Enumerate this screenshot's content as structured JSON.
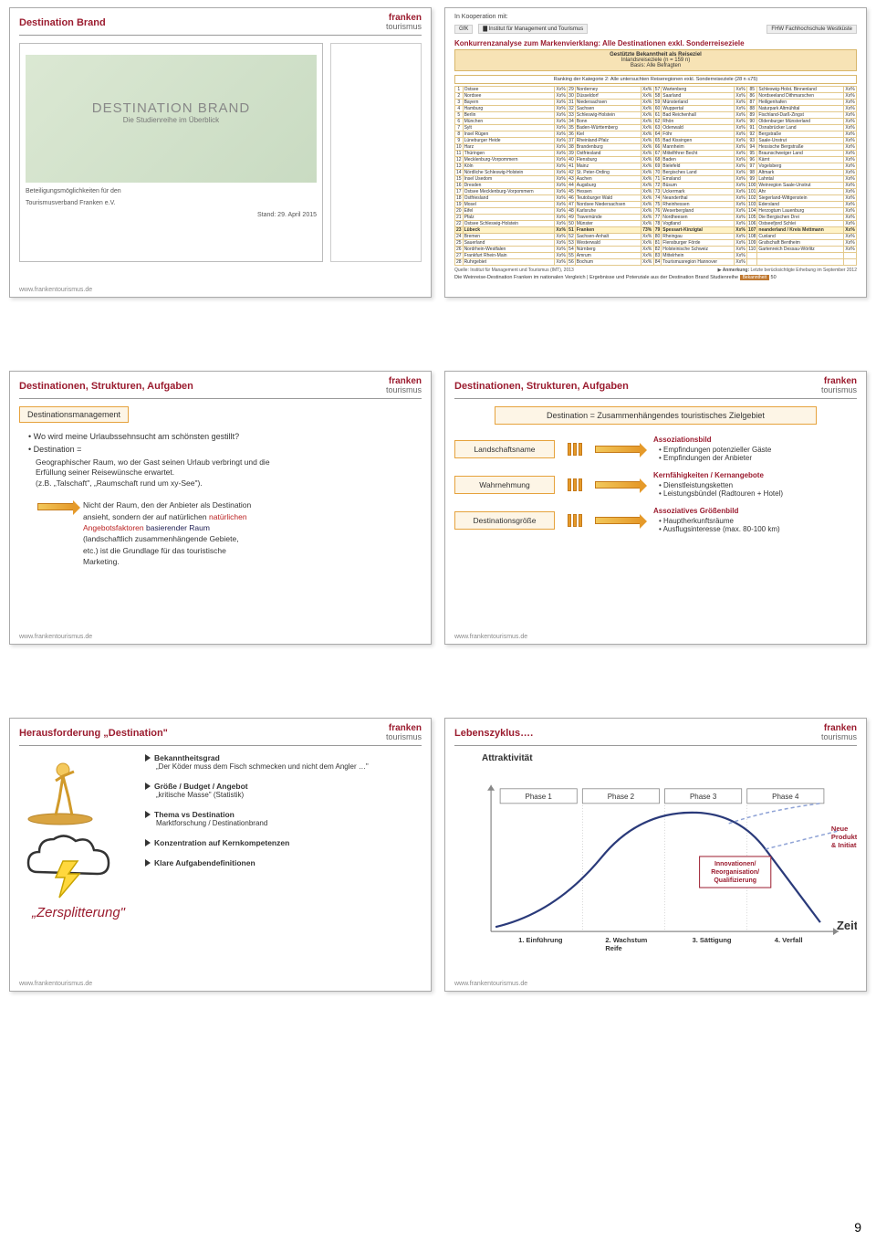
{
  "footer_url": "www.frankentourismus.de",
  "page_number": "9",
  "brand": {
    "line1": "franken",
    "line2": "tourismus"
  },
  "slide1": {
    "title": "Destination Brand",
    "db_title": "DESTINATION BRAND",
    "db_subtitle": "Die Studienreihe im Überblick",
    "caption1": "Beteiligungsmöglichkeiten für den",
    "caption2": "Tourismusverband Franken e.V.",
    "date": "Stand: 29. April 2015"
  },
  "slide2": {
    "coop": "In Kooperation mit:",
    "partners": [
      "GfK",
      "▇ Institut für Management und Tourismus",
      "FHW Fachhochschule Westküste"
    ],
    "konk_title": "Konkurrenzanalyse zum Markenvierklang: Alle Destinationen exkl. Sonderreiseziele",
    "yellow_title": "Gestützte Bekanntheit als Reiseziel",
    "yellow_sub1": "Inlandsreiseziele (n = 159 n)",
    "yellow_sub2": "Basis: Alle Befragten",
    "rank_title": "Ranking der Kategorie 2: Alle untersuchten Reiseregionen exkl. Sonderreiseziele (28 n ≤75)",
    "source": "Quelle: Institut für Management und Tourismus (IMT), 2013",
    "anm_label": "▶ Anmerkung:",
    "anm": "Letzte berücksichtigte Erhebung im September 2012",
    "bottom": "Die Weinreise-Destination Franken im nationalen Vergleich | Ergebnisse und Potenziale aus der Destination Brand Studienreihe",
    "bek_tag": "Bekanntheit",
    "bek_num": "50",
    "cols": [
      [
        "1",
        "Ostsee",
        "Xx%",
        "29",
        "Norderney",
        "Xx%",
        "57",
        "Wartenberg",
        "Xx%",
        "85",
        "Schleswig-Holst. Binnenland",
        "Xx%"
      ],
      [
        "2",
        "Nordsee",
        "Xx%",
        "30",
        "Düsseldorf",
        "Xx%",
        "58",
        "Saarland",
        "Xx%",
        "86",
        "Nordseeland Dithmarschen",
        "Xx%"
      ],
      [
        "3",
        "Bayern",
        "Xx%",
        "31",
        "Niedersachsen",
        "Xx%",
        "59",
        "Münsterland",
        "Xx%",
        "87",
        "Heiligenhafen",
        "Xx%"
      ],
      [
        "4",
        "Hamburg",
        "Xx%",
        "32",
        "Sachsen",
        "Xx%",
        "60",
        "Wuppertal",
        "Xx%",
        "88",
        "Naturpark Altmühltal",
        "Xx%"
      ],
      [
        "5",
        "Berlin",
        "Xx%",
        "33",
        "Schleswig-Holstein",
        "Xx%",
        "61",
        "Bad Reichenhall",
        "Xx%",
        "89",
        "Fischland-Darß-Zingst",
        "Xx%"
      ],
      [
        "6",
        "München",
        "Xx%",
        "34",
        "Bonn",
        "Xx%",
        "62",
        "Rhön",
        "Xx%",
        "90",
        "Oldenburger Münsterland",
        "Xx%"
      ],
      [
        "7",
        "Sylt",
        "Xx%",
        "35",
        "Baden-Württemberg",
        "Xx%",
        "63",
        "Odenwald",
        "Xx%",
        "91",
        "Osnabrücker Land",
        "Xx%"
      ],
      [
        "8",
        "Insel Rügen",
        "Xx%",
        "36",
        "Kiel",
        "Xx%",
        "64",
        "Föhr",
        "Xx%",
        "92",
        "Bergstraße",
        "Xx%"
      ],
      [
        "9",
        "Lüneburger Heide",
        "Xx%",
        "37",
        "Rheinland-Pfalz",
        "Xx%",
        "65",
        "Bad Kissingen",
        "Xx%",
        "93",
        "Saale-Unstrut",
        "Xx%"
      ],
      [
        "10",
        "Harz",
        "Xx%",
        "38",
        "Brandenburg",
        "Xx%",
        "66",
        "Mannheim",
        "Xx%",
        "94",
        "Hessische Bergstraße",
        "Xx%"
      ],
      [
        "11",
        "Thüringen",
        "Xx%",
        "39",
        "Ostfriesland",
        "Xx%",
        "67",
        "Mittelfrhrer Becht",
        "Xx%",
        "95",
        "Braunschweiger Land",
        "Xx%"
      ],
      [
        "12",
        "Mecklenburg-Vorpommern",
        "Xx%",
        "40",
        "Flensburg",
        "Xx%",
        "68",
        "Baden",
        "Xx%",
        "96",
        "Kärnt",
        "Xx%"
      ],
      [
        "13",
        "Köln",
        "Xx%",
        "41",
        "Mainz",
        "Xx%",
        "69",
        "Bielefeld",
        "Xx%",
        "97",
        "Vogelsberg",
        "Xx%"
      ],
      [
        "14",
        "Nördliche Schleswig-Holstein",
        "Xx%",
        "42",
        "St. Peter-Ording",
        "Xx%",
        "70",
        "Bergisches Land",
        "Xx%",
        "98",
        "Altmark",
        "Xx%"
      ],
      [
        "15",
        "Insel Usedom",
        "Xx%",
        "43",
        "Aachen",
        "Xx%",
        "71",
        "Emsland",
        "Xx%",
        "99",
        "Lahntal",
        "Xx%"
      ],
      [
        "16",
        "Dresden",
        "Xx%",
        "44",
        "Augsburg",
        "Xx%",
        "72",
        "Büsum",
        "Xx%",
        "100",
        "Weinregion Saale-Unstrut",
        "Xx%"
      ],
      [
        "17",
        "Ostsee Mecklenburg-Vorpommern",
        "Xx%",
        "45",
        "Hessen",
        "Xx%",
        "73",
        "Uckermark",
        "Xx%",
        "101",
        "Ahr",
        "Xx%"
      ],
      [
        "18",
        "Ostfriesland",
        "Xx%",
        "46",
        "Teutoburger Wald",
        "Xx%",
        "74",
        "Neanderthal",
        "Xx%",
        "102",
        "Siegerland-Wittgenstein",
        "Xx%"
      ],
      [
        "19",
        "Mosel",
        "Xx%",
        "47",
        "Nordsee Niedersachsen",
        "Xx%",
        "75",
        "Rheinhessen",
        "Xx%",
        "103",
        "Edersland",
        "Xx%"
      ],
      [
        "20",
        "Eifel",
        "Xx%",
        "48",
        "Karlsruhe",
        "Xx%",
        "76",
        "Weserbergland",
        "Xx%",
        "104",
        "Herzogtum Lauenburg",
        "Xx%"
      ],
      [
        "21",
        "Pfalz",
        "Xx%",
        "49",
        "Travemünde",
        "Xx%",
        "77",
        "Nordheesen",
        "Xx%",
        "105",
        "Die Bergischen Drei",
        "Xx%"
      ],
      [
        "22",
        "Ostsee Schleswig-Holstein",
        "Xx%",
        "50",
        "Münster",
        "Xx%",
        "78",
        "Vogtland",
        "Xx%",
        "106",
        "Ostseefjord Schlei",
        "Xx%"
      ],
      [
        "23",
        "Lübeck",
        "Xx%",
        "51",
        "Franken",
        "73%",
        "79",
        "Spessart-Kinzigtal",
        "Xx%",
        "107",
        "neanderland / Kreis Mettmann",
        "Xx%"
      ],
      [
        "24",
        "Bremen",
        "Xx%",
        "52",
        "Sachsen-Anhalt",
        "Xx%",
        "80",
        "Rheingau",
        "Xx%",
        "108",
        "Cuxland",
        "Xx%"
      ],
      [
        "25",
        "Sauerland",
        "Xx%",
        "53",
        "Westerwald",
        "Xx%",
        "81",
        "Flensburger Förde",
        "Xx%",
        "109",
        "Grafschaft Bentheim",
        "Xx%"
      ],
      [
        "26",
        "Nordrhein-Westfalen",
        "Xx%",
        "54",
        "Nürnberg",
        "Xx%",
        "82",
        "Holsteinische Schweiz",
        "Xx%",
        "110",
        "Gartenreich Dessau-Wörlitz",
        "Xx%"
      ],
      [
        "27",
        "Frankfurt Rhein-Main",
        "Xx%",
        "55",
        "Amrum",
        "Xx%",
        "83",
        "Mittelrhein",
        "Xx%",
        "",
        "",
        ""
      ],
      [
        "28",
        "Ruhrgebiet",
        "Xx%",
        "56",
        "Bochum",
        "Xx%",
        "84",
        "Tourismusregion Hannover",
        "Xx%",
        "",
        "",
        ""
      ]
    ]
  },
  "slide3": {
    "title": "Destinationen, Strukturen, Aufgaben",
    "callout": "Destinationsmanagement",
    "q": "Wo wird meine Urlaubssehnsucht am schönsten gestillt?",
    "dest_label": "Destination =",
    "dest_body1": "Geographischer Raum, wo der Gast seinen Urlaub verbringt und die",
    "dest_body2": "Erfüllung seiner Reisewünsche erwartet.",
    "dest_body3": "(z.B. „Talschaft\", „Raumschaft rund um xy-See\").",
    "quote1": "Nicht der Raum, den der Anbieter als Destination",
    "quote2": "ansieht, sondern der auf natürlichen",
    "quote3": "Angebotsfaktoren basierender Raum",
    "quote4": "(landschaftlich zusammenhängende Gebiete,",
    "quote5": "etc.) ist die Grundlage für das touristische",
    "quote6": "Marketing."
  },
  "slide4": {
    "title": "Destinationen, Strukturen, Aufgaben",
    "top": "Destination = Zusammenhängendes touristisches Zielgebiet",
    "rows": [
      {
        "box": "Landschaftsname",
        "hd": "Assoziationsbild",
        "items": [
          "Empfindungen potenzieller Gäste",
          "Empfindungen der Anbieter"
        ]
      },
      {
        "box": "Wahrnehmung",
        "hd": "Kernfähigkeiten / Kernangebote",
        "items": [
          "Dienstleistungsketten",
          "Leistungsbündel (Radtouren + Hotel)"
        ]
      },
      {
        "box": "Destinationsgröße",
        "hd": "Assoziatives Größenbild",
        "items": [
          "Hauptherkunftsräume",
          "Ausflugsinteresse (max. 80-100 km)"
        ]
      }
    ]
  },
  "slide5": {
    "title": "Herausforderung „Destination\"",
    "items": [
      {
        "hd": "Bekanntheitsgrad",
        "sub": "„Der Köder muss dem Fisch schmecken und nicht dem Angler …\""
      },
      {
        "hd": "Größe / Budget / Angebot",
        "sub": "„kritische Masse\" (Statistik)"
      },
      {
        "hd": "Thema vs Destination",
        "sub": "Marktforschung / Destinationbrand"
      },
      {
        "hd": "Konzentration auf Kernkompetenzen",
        "sub": ""
      },
      {
        "hd": "Klare Aufgabendefinitionen",
        "sub": ""
      }
    ],
    "zerspl": "„Zersplitterung\""
  },
  "slide6": {
    "title": "Lebenszyklus….",
    "ylabel": "Attraktivität",
    "xlabel": "Zeit",
    "phases": [
      "Phase 1",
      "Phase 2",
      "Phase 3",
      "Phase 4"
    ],
    "stage_labels": [
      "1. Einführung",
      "2. Wachstum, Reife",
      "3. Sättigung",
      "4. Verfall"
    ],
    "box1_l1": "Innovationen/",
    "box1_l2": "Reorganisation/",
    "box1_l3": "Qualifizierung",
    "box2_l1": "Neue",
    "box2_l2": "Produkte",
    "box2_l3": "& Initiativen",
    "curve_color": "#2a3a7a",
    "dashed_color": "#8fa3d6",
    "box_border": "#9b1c2f",
    "box_text": "#9b1c2f",
    "grid_color": "#888"
  }
}
